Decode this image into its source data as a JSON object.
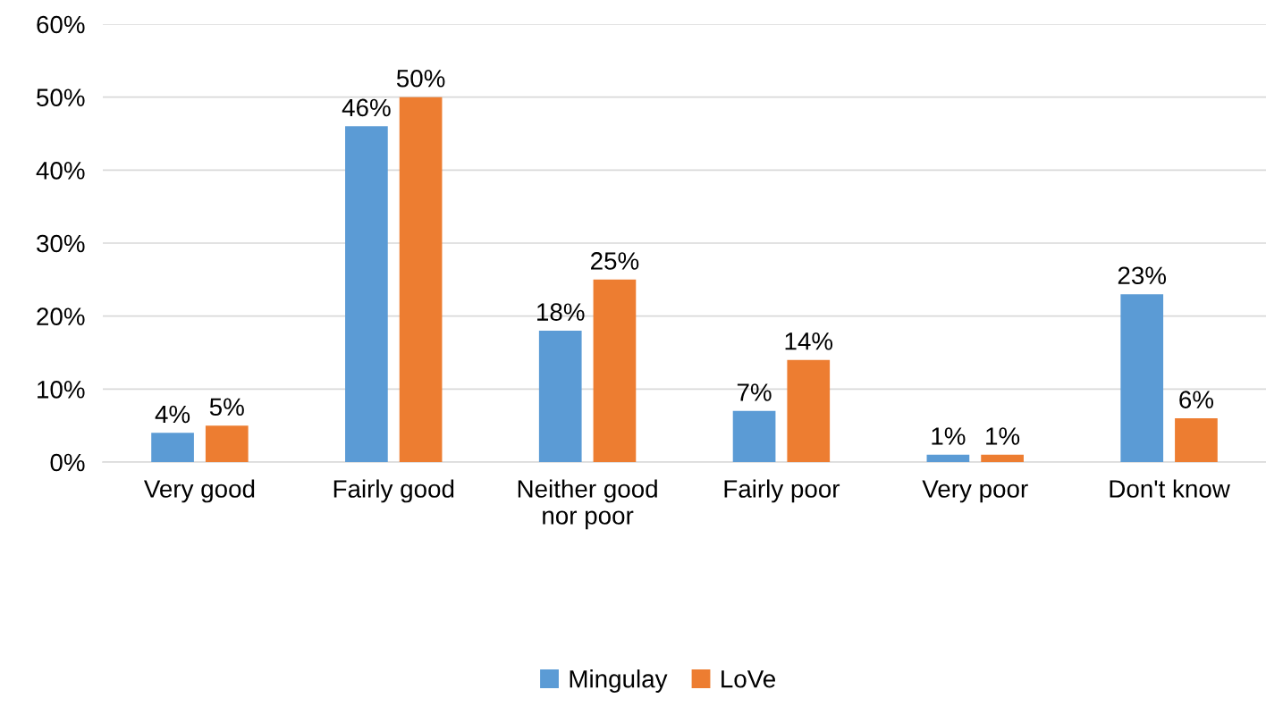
{
  "chart_data": {
    "type": "bar",
    "categories": [
      "Very good",
      "Fairly good",
      "Neither good\nnor poor",
      "Fairly poor",
      "Very poor",
      "Don't know"
    ],
    "series": [
      {
        "name": "Mingulay",
        "color": "#5b9bd5",
        "values": [
          4,
          46,
          18,
          7,
          1,
          23
        ],
        "value_labels": [
          "4%",
          "46%",
          "18%",
          "7%",
          "1%",
          "23%"
        ]
      },
      {
        "name": "LoVe",
        "color": "#ed7d31",
        "values": [
          5,
          50,
          25,
          14,
          1,
          6
        ],
        "value_labels": [
          "5%",
          "50%",
          "25%",
          "14%",
          "1%",
          "6%"
        ]
      }
    ],
    "ylim": [
      0,
      60
    ],
    "yticks": [
      {
        "value": 0,
        "label": "0%"
      },
      {
        "value": 10,
        "label": "10%"
      },
      {
        "value": 20,
        "label": "20%"
      },
      {
        "value": 30,
        "label": "30%"
      },
      {
        "value": 40,
        "label": "40%"
      },
      {
        "value": 50,
        "label": "50%"
      },
      {
        "value": 60,
        "label": "60%"
      }
    ],
    "grid": "y",
    "legend": "bottom"
  }
}
